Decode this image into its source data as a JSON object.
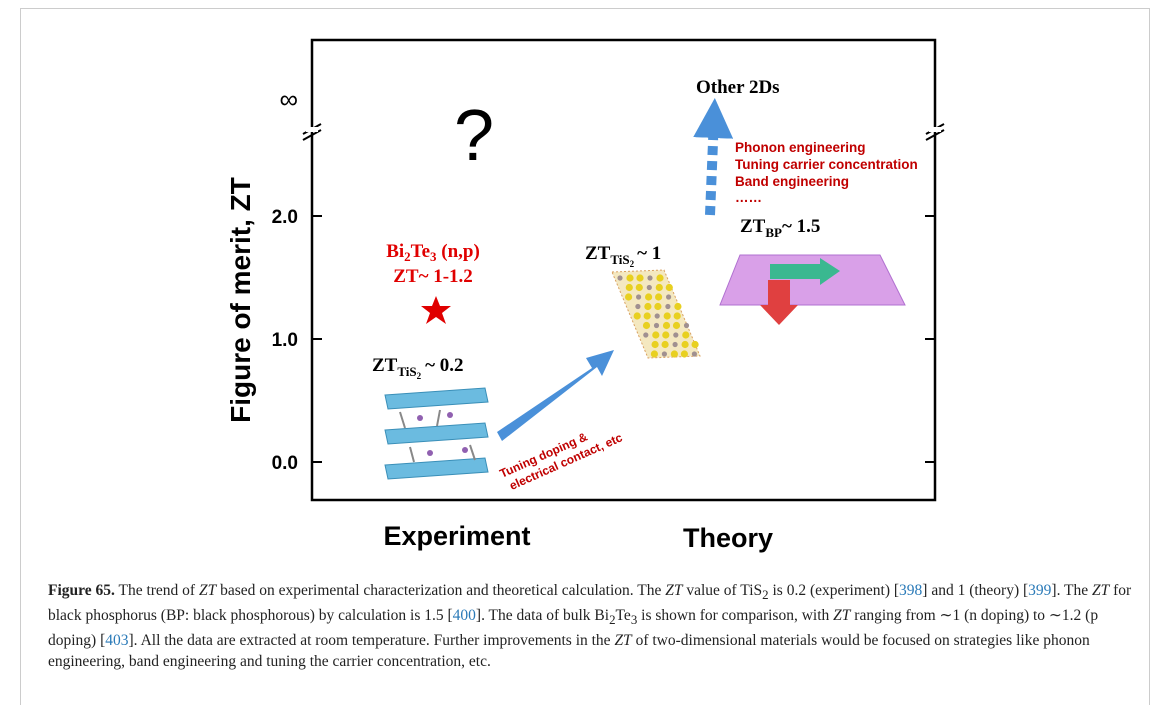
{
  "figure": {
    "y_axis_label": "Figure of merit, ZT",
    "y_ticks": [
      "0.0",
      "1.0",
      "2.0",
      "∞"
    ],
    "x_labels": [
      "Experiment",
      "Theory"
    ],
    "question": "?",
    "other_2ds": "Other 2Ds",
    "strategies": [
      "Phonon engineering",
      "Tuning carrier concentration",
      "Band engineering",
      "……"
    ],
    "bi2te3": {
      "label": [
        "Bi",
        "2",
        "Te",
        "3",
        " (n,p)"
      ],
      "zt": "ZT~ 1-1.2"
    },
    "zt_tis2_experiment": [
      "ZT",
      "TiS",
      "2",
      "~ 0.2"
    ],
    "zt_tis2_theory": [
      "ZT",
      "TiS",
      "2",
      "~ 1"
    ],
    "zt_bp": [
      "ZT",
      "BP",
      "~ 1.5"
    ],
    "arrow_label": [
      "Tuning doping &",
      "electrical contact, etc"
    ]
  },
  "caption": [
    "Figure 65.",
    " The trend of ",
    "ZT",
    " based on experimental characterization and theoretical calculation. The ",
    "ZT",
    " value of TiS",
    "2",
    " is 0.2 (experiment) [",
    "398",
    "] and 1 (theory) [",
    "399",
    "]. The ",
    "ZT",
    " for black phosphorus (BP: black phosphorous) by calculation is 1.5 [",
    "400",
    "]. The data of bulk Bi",
    "2",
    "Te",
    "3",
    " is shown for comparison, with ",
    "ZT",
    " ranging from ∼1 (n doping) to ∼1.2 (p doping) [",
    "403",
    "]. All the data are extracted at room temperature. Further improvements in the ",
    "ZT",
    " of two-dimensional materials would be focused on strategies like phonon engineering, band engineering and tuning the carrier concentration, etc."
  ]
}
